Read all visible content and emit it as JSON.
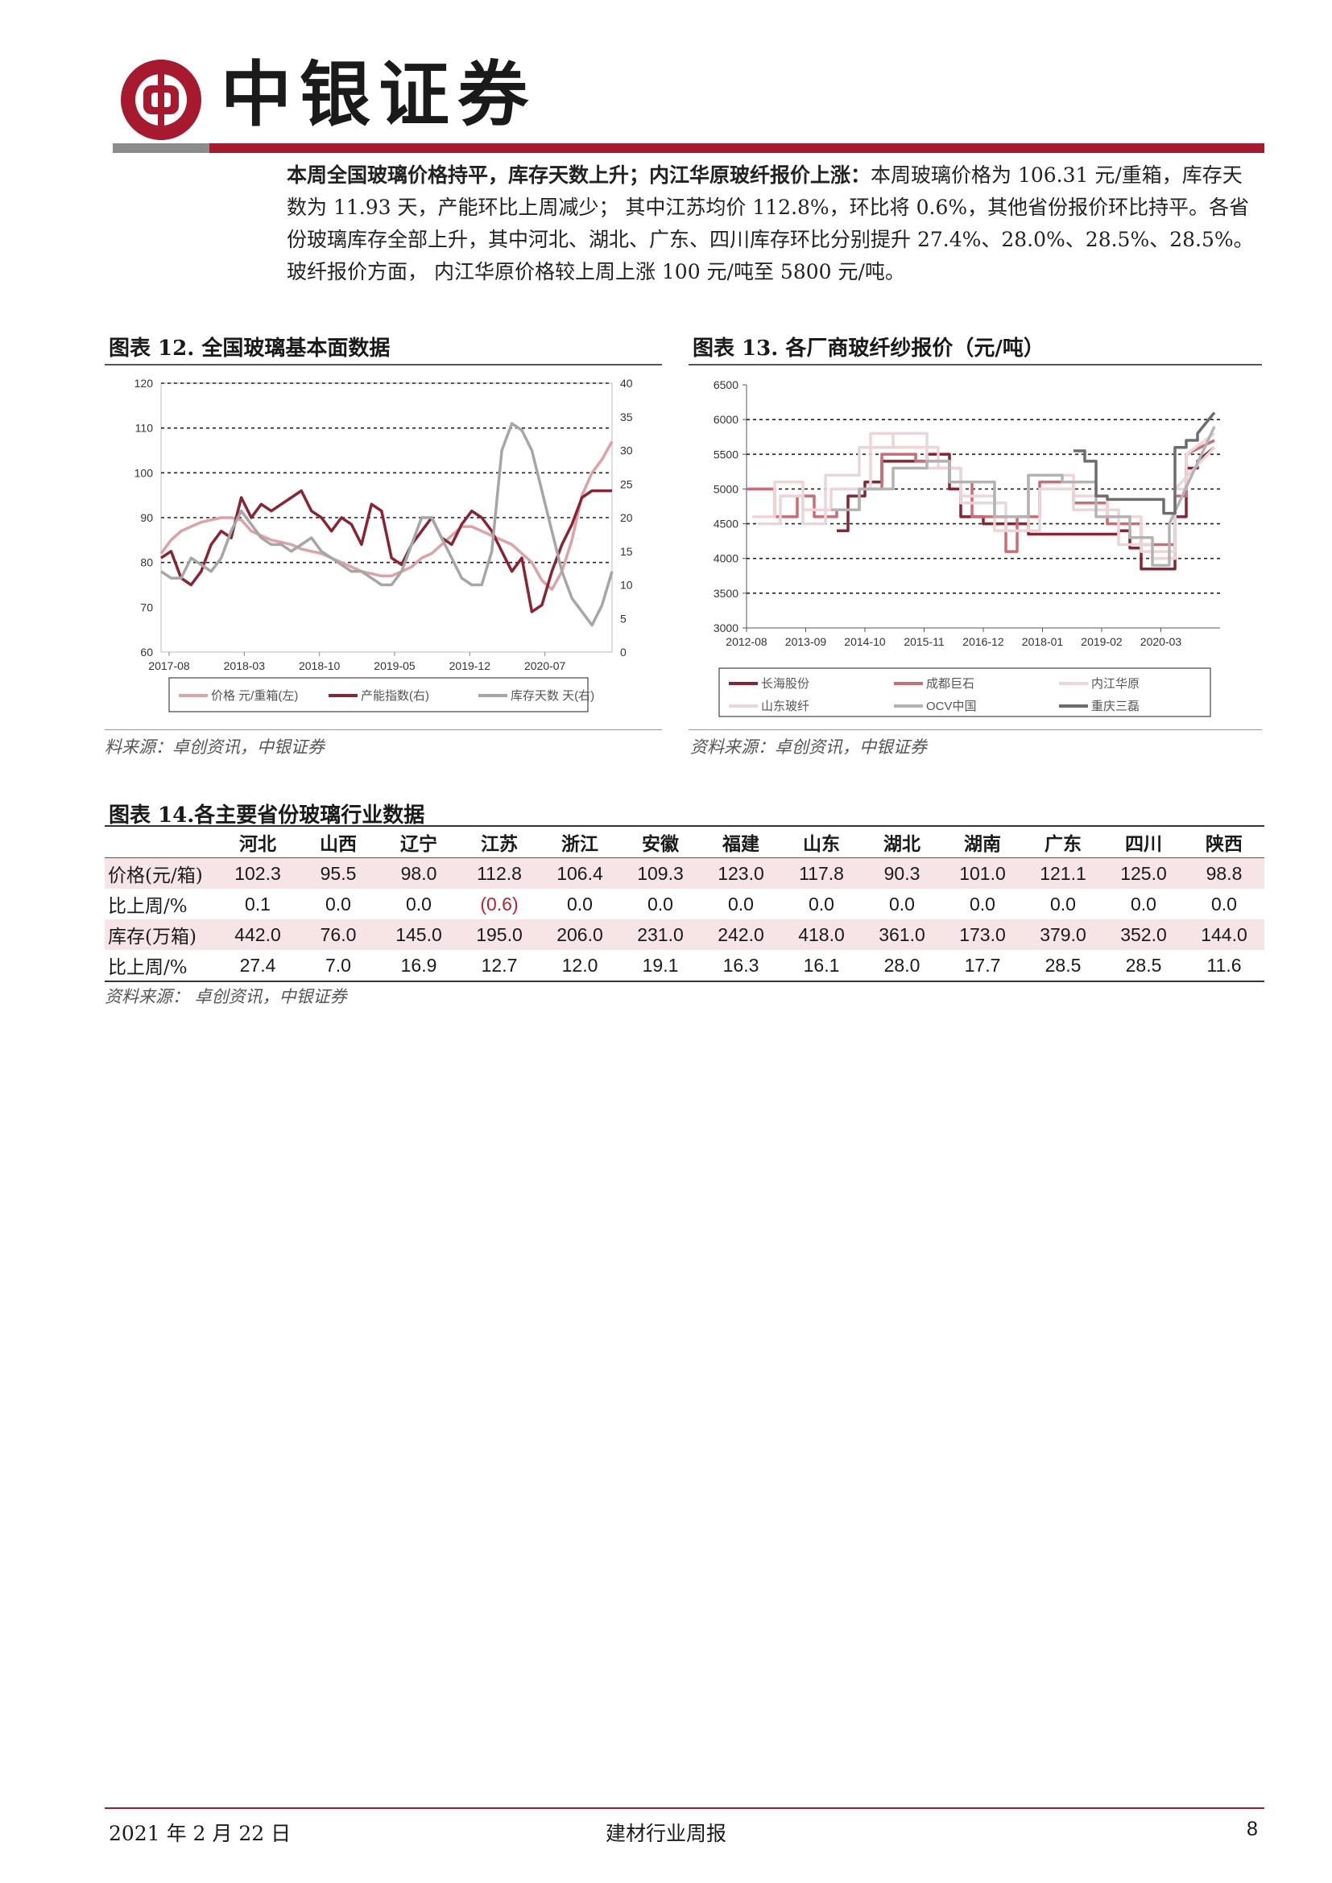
{
  "header": {
    "brand_name": "中银证券",
    "colors": {
      "brand_red": "#a6192e",
      "bar_grey": "#8c8c8c"
    }
  },
  "intro": {
    "lead": "本周全国玻璃价格持平，库存天数上升；内江华原玻纤报价上涨：",
    "body": "本周玻璃价格为 106.31 元/重箱，库存天数为 11.93 天，产能环比上周减少； 其中江苏均价 112.8%，环比将 0.6%，其他省份报价环比持平。各省份玻璃库存全部上升，其中河北、湖北、广东、四川库存环比分别提升 27.4%、28.0%、28.5%、28.5%。玻纤报价方面， 内江华原价格较上周上涨 100 元/吨至 5800 元/吨。"
  },
  "fig12": {
    "title": "图表 12. 全国玻璃基本面数据",
    "source": "料来源：卓创资讯，中银证券"
  },
  "fig13": {
    "title": "图表 13. 各厂商玻纤纱报价（元/吨）",
    "source": "资料来源：卓创资讯，中银证券"
  },
  "fig14": {
    "title": "图表 14.各主要省份玻璃行业数据",
    "source": "资料来源： 卓创资讯，中银证券"
  },
  "table": {
    "columns": [
      "河北",
      "山西",
      "辽宁",
      "江苏",
      "浙江",
      "安徽",
      "福建",
      "山东",
      "湖北",
      "湖南",
      "广东",
      "四川",
      "陕西"
    ],
    "rows": [
      {
        "label": "价格(元/箱)",
        "values": [
          "102.3",
          "95.5",
          "98.0",
          "112.8",
          "106.4",
          "109.3",
          "123.0",
          "117.8",
          "90.3",
          "101.0",
          "121.1",
          "125.0",
          "98.8"
        ]
      },
      {
        "label": "比上周/%",
        "values": [
          "0.1",
          "0.0",
          "0.0",
          "(0.6)",
          "0.0",
          "0.0",
          "0.0",
          "0.0",
          "0.0",
          "0.0",
          "0.0",
          "0.0",
          "0.0"
        ]
      },
      {
        "label": "库存(万箱)",
        "values": [
          "442.0",
          "76.0",
          "145.0",
          "195.0",
          "206.0",
          "231.0",
          "242.0",
          "418.0",
          "361.0",
          "173.0",
          "379.0",
          "352.0",
          "144.0"
        ]
      },
      {
        "label": "比上周/%",
        "values": [
          "27.4",
          "7.0",
          "16.9",
          "12.7",
          "12.0",
          "19.1",
          "16.3",
          "16.1",
          "28.0",
          "17.7",
          "28.5",
          "28.5",
          "11.6"
        ]
      }
    ],
    "negative_color": "#c0202e",
    "shade_color": "#f7e4e6"
  },
  "footer": {
    "date": "2021 年 2 月 22 日",
    "title": "建材行业周报",
    "page": "8"
  },
  "chart_data": [
    {
      "type": "line",
      "x_ticks": [
        "2017-08",
        "2018-03",
        "2018-10",
        "2019-05",
        "2019-12",
        "2020-07"
      ],
      "y_left": {
        "ticks": [
          "120",
          "110",
          "100",
          "90",
          "80",
          "70",
          "60"
        ],
        "range": [
          60,
          120
        ]
      },
      "y_right": {
        "ticks": [
          "40",
          "35",
          "30",
          "25",
          "20",
          "15",
          "10",
          "5",
          "0"
        ],
        "range": [
          0,
          40
        ]
      },
      "reference_lines_left": [
        80,
        90,
        100,
        110,
        120
      ],
      "x_range": [
        0,
        45
      ],
      "legend_position": "bottom",
      "series": [
        {
          "name": "价格 元/重箱(左)",
          "axis": "left",
          "color": "#e0a0a5",
          "x": [
            0,
            1,
            2,
            3,
            4,
            5,
            6,
            7,
            8,
            9,
            10,
            11,
            12,
            13,
            14,
            15,
            16,
            17,
            18,
            19,
            20,
            21,
            22,
            23,
            24,
            25,
            26,
            27,
            28,
            29,
            30,
            31,
            32,
            33,
            34,
            35,
            36,
            37,
            38,
            39,
            40,
            41,
            42,
            43,
            44,
            45
          ],
          "y": [
            82,
            85,
            87,
            88,
            89,
            89.5,
            90,
            90,
            89.5,
            87,
            86,
            85,
            84.5,
            84,
            83,
            82.5,
            82,
            81,
            80,
            79,
            78,
            77.5,
            77,
            77,
            78,
            79,
            81,
            82,
            84,
            86,
            88,
            88,
            87,
            86,
            85,
            84,
            82,
            80,
            76,
            74,
            78,
            85,
            95,
            100,
            103,
            107
          ]
        },
        {
          "name": "产能指数(右)",
          "axis": "right",
          "color": "#8b2332",
          "x": [
            0,
            1,
            2,
            3,
            4,
            5,
            6,
            7,
            8,
            9,
            10,
            11,
            12,
            13,
            14,
            15,
            16,
            17,
            18,
            19,
            20,
            21,
            22,
            23,
            24,
            25,
            26,
            27,
            28,
            29,
            30,
            31,
            32,
            33,
            34,
            35,
            36,
            37,
            38,
            39,
            40,
            41,
            42,
            43,
            44,
            45
          ],
          "y": [
            14,
            15,
            11,
            10,
            12,
            16,
            18,
            17,
            23,
            20,
            22,
            21,
            22,
            23,
            24,
            21,
            20,
            18,
            20,
            19,
            16,
            22,
            21,
            14,
            13,
            16,
            18,
            20,
            17,
            16,
            19,
            21,
            20,
            18,
            15,
            12,
            14,
            6,
            7,
            12,
            16,
            19,
            23,
            24,
            24,
            24
          ]
        },
        {
          "name": "库存天数 天(右)",
          "axis": "right",
          "color": "#a6a6a6",
          "x": [
            0,
            1,
            2,
            3,
            4,
            5,
            6,
            7,
            8,
            9,
            10,
            11,
            12,
            13,
            14,
            15,
            16,
            17,
            18,
            19,
            20,
            21,
            22,
            23,
            24,
            25,
            26,
            27,
            28,
            29,
            30,
            31,
            32,
            33,
            34,
            35,
            36,
            37,
            38,
            39,
            40,
            41,
            42,
            43,
            44,
            45
          ],
          "y": [
            12,
            11,
            11,
            14,
            13,
            12,
            14,
            18,
            21,
            19,
            17,
            16,
            16,
            15,
            16,
            17,
            15,
            14,
            13,
            12,
            12,
            11,
            10,
            10,
            12,
            16,
            20,
            20,
            17,
            14,
            11,
            10,
            10,
            15,
            30,
            34,
            33,
            30,
            24,
            18,
            12,
            8,
            6,
            4,
            7,
            12
          ]
        }
      ]
    },
    {
      "type": "line",
      "x_ticks": [
        "2012-08",
        "2013-09",
        "2014-10",
        "2015-11",
        "2016-12",
        "2018-01",
        "2019-02",
        "2020-03"
      ],
      "y_ticks": [
        "6500",
        "6000",
        "5500",
        "5000",
        "4500",
        "4000",
        "3500",
        "3000"
      ],
      "y_range": [
        3000,
        6500
      ],
      "reference_lines": [
        3500,
        4000,
        4500,
        5000,
        5500,
        6000
      ],
      "x_range": [
        0,
        8.4
      ],
      "legend_position": "bottom",
      "series": [
        {
          "name": "长海股份",
          "color": "#8b2332",
          "x": [
            1.6,
            1.8,
            1.8,
            2.1,
            2.1,
            2.4,
            2.4,
            3.2,
            3.2,
            3.6,
            3.6,
            3.8,
            3.8,
            4.2,
            4.2,
            5.0,
            5.0,
            6.6,
            6.6,
            6.8,
            6.8,
            7.0,
            7.0,
            7.6,
            7.6,
            7.8,
            7.8,
            8.0,
            8.0,
            8.3
          ],
          "y": [
            4400,
            4400,
            4900,
            4900,
            5100,
            5100,
            5400,
            5400,
            5500,
            5500,
            5000,
            5000,
            4600,
            4600,
            4500,
            4500,
            4350,
            4350,
            4400,
            4400,
            4150,
            4150,
            3850,
            3850,
            4600,
            4600,
            5300,
            5300,
            5400,
            5600
          ]
        },
        {
          "name": "成都巨石",
          "color": "#d06b73",
          "x": [
            0,
            0.5,
            0.5,
            0.9,
            0.9,
            1.2,
            1.2,
            1.6,
            1.6,
            2.0,
            2.0,
            2.4,
            2.4,
            3.0,
            3.0,
            3.6,
            3.6,
            4.0,
            4.0,
            4.6,
            4.6,
            4.8,
            4.8,
            5.2,
            5.2,
            5.8,
            5.8,
            6.4,
            6.4,
            7.0,
            7.0,
            7.6,
            7.6,
            7.8,
            7.8,
            8.3
          ],
          "y": [
            5000,
            5000,
            4600,
            4600,
            4900,
            4900,
            4600,
            4600,
            4700,
            4700,
            5000,
            5000,
            5500,
            5500,
            5400,
            5400,
            5100,
            5100,
            4600,
            4600,
            4100,
            4100,
            4600,
            4600,
            5100,
            5100,
            4800,
            4800,
            4500,
            4500,
            4200,
            4200,
            4900,
            4900,
            5500,
            5700
          ]
        },
        {
          "name": "内江华原",
          "color": "#f3d4d6",
          "x": [
            0.1,
            0.5,
            0.5,
            1.0,
            1.0,
            1.5,
            1.5,
            2.2,
            2.2,
            2.6,
            2.6,
            3.4,
            3.4,
            3.8,
            3.8,
            4.4,
            4.4,
            5.0,
            5.0,
            5.8,
            5.8,
            6.4,
            6.4,
            7.0,
            7.0,
            7.6,
            7.6,
            7.8,
            7.8,
            8.3
          ],
          "y": [
            4600,
            4600,
            5100,
            5100,
            4700,
            4700,
            5000,
            5000,
            5800,
            5800,
            5600,
            5600,
            5300,
            5300,
            4900,
            4900,
            4400,
            4400,
            5200,
            5200,
            4900,
            4900,
            4600,
            4600,
            4100,
            4100,
            5000,
            5000,
            5500,
            5800
          ]
        },
        {
          "name": "山东玻纤",
          "color": "#ead6d8",
          "x": [
            0.2,
            0.6,
            0.6,
            1.0,
            1.0,
            1.4,
            1.4,
            2.0,
            2.0,
            2.6,
            2.6,
            3.2,
            3.2,
            3.8,
            3.8,
            4.6,
            4.6,
            5.2,
            5.2,
            5.8,
            5.8,
            6.6,
            6.6,
            7.2,
            7.2,
            7.6,
            7.6,
            8.3
          ],
          "y": [
            4500,
            4500,
            4900,
            4900,
            4500,
            4500,
            5200,
            5200,
            5600,
            5600,
            5800,
            5800,
            5300,
            5300,
            4800,
            4800,
            4400,
            4400,
            5000,
            5000,
            4700,
            4700,
            4200,
            4200,
            4000,
            4000,
            5000,
            5600
          ]
        },
        {
          "name": "OCV中国",
          "color": "#b3b3b3",
          "x": [
            1.5,
            2.0,
            2.0,
            2.6,
            2.6,
            3.2,
            3.2,
            3.6,
            3.6,
            4.4,
            4.4,
            5.0,
            5.0,
            5.6,
            5.6,
            6.2,
            6.2,
            6.8,
            6.8,
            7.2,
            7.2,
            7.5,
            7.5,
            8.3
          ],
          "y": [
            4700,
            4700,
            5000,
            5000,
            5300,
            5300,
            5400,
            5400,
            5100,
            5100,
            4600,
            4600,
            5200,
            5200,
            5100,
            5100,
            4600,
            4600,
            4300,
            4300,
            3900,
            3900,
            4500,
            5900
          ]
        },
        {
          "name": "重庆三磊",
          "color": "#6d6d6d",
          "x": [
            5.8,
            6.0,
            6.0,
            6.2,
            6.2,
            6.4,
            6.4,
            7.4,
            7.4,
            7.6,
            7.6,
            7.8,
            7.8,
            8.0,
            8.0,
            8.3
          ],
          "y": [
            5550,
            5550,
            5400,
            5400,
            4900,
            4900,
            4850,
            4850,
            4650,
            4650,
            5600,
            5600,
            5700,
            5700,
            5800,
            6100
          ]
        }
      ]
    }
  ]
}
